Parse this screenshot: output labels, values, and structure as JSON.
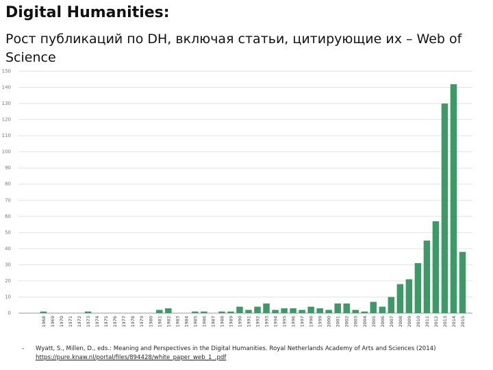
{
  "slide": {
    "title": "Digital Humanities:",
    "subtitle": "Рост публикаций по DH, включая статьи, цитирующие их – Web of Science",
    "reference": {
      "bullet": "-",
      "text": "Wyatt, S., Millen, D., eds.: Meaning and Perspectives in the Digital Humanities. Royal Netherlands Academy of Arts and Sciences (2014)",
      "link": "https://pure.knaw.nl/portal/files/894428/white_paper_web_1_.pdf"
    }
  },
  "chart_data": {
    "type": "bar",
    "title": "",
    "xlabel": "",
    "ylabel": "",
    "ylim": [
      0,
      150
    ],
    "y_ticks": [
      "0",
      "10",
      "20",
      "30",
      "40",
      "50",
      "60",
      "70",
      "80",
      "90",
      "100",
      "110",
      "120",
      "130",
      "140",
      "150"
    ],
    "grid": true,
    "bar_color": "#3d9a67",
    "categories": [
      "1968",
      "1969",
      "1970",
      "1971",
      "1972",
      "1973",
      "1974",
      "1975",
      "1976",
      "1977",
      "1978",
      "1979",
      "1980",
      "1981",
      "1982",
      "1983",
      "1984",
      "1985",
      "1986",
      "1987",
      "1988",
      "1989",
      "1990",
      "1991",
      "1992",
      "1993",
      "1994",
      "1995",
      "1996",
      "1997",
      "1998",
      "1999",
      "2000",
      "2001",
      "2002",
      "2003",
      "2004",
      "2005",
      "2006",
      "2007",
      "2008",
      "2009",
      "2010",
      "2011",
      "2012",
      "2013",
      "2014",
      "2015"
    ],
    "values": [
      1,
      0,
      0,
      0,
      0,
      1,
      0,
      0,
      0,
      0,
      0,
      0,
      0,
      2,
      3,
      0,
      0,
      1,
      1,
      0,
      1,
      1,
      4,
      2,
      4,
      6,
      2,
      3,
      3,
      2,
      4,
      3,
      2,
      6,
      6,
      2,
      1,
      7,
      4,
      10,
      18,
      21,
      31,
      45,
      57,
      130,
      142,
      38
    ]
  }
}
